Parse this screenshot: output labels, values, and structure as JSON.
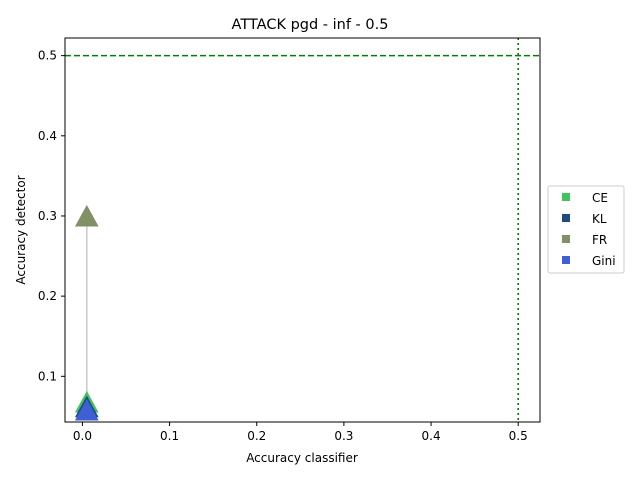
{
  "chart_data": {
    "type": "scatter",
    "title": "ATTACK pgd - inf - 0.5",
    "xlabel": "Accuracy classifier",
    "ylabel": "Accuracy detector",
    "xlim": [
      -0.02,
      0.525
    ],
    "ylim": [
      0.043,
      0.522
    ],
    "xticks": [
      0.0,
      0.1,
      0.2,
      0.3,
      0.4,
      0.5
    ],
    "xtick_labels": [
      "0.0",
      "0.1",
      "0.2",
      "0.3",
      "0.4",
      "0.5"
    ],
    "yticks": [
      0.1,
      0.2,
      0.3,
      0.4,
      0.5
    ],
    "ytick_labels": [
      "0.1",
      "0.2",
      "0.3",
      "0.4",
      "0.5"
    ],
    "grid": false,
    "legend_position": "right, outside plot",
    "reference_lines": [
      {
        "orientation": "horizontal",
        "value": 0.5,
        "style": "dashed",
        "color": "#008000"
      },
      {
        "orientation": "vertical",
        "value": 0.5,
        "style": "dotted",
        "color": "#008000"
      }
    ],
    "connector": {
      "x": 0.005,
      "y_from": 0.058,
      "y_to": 0.3,
      "color": "#cccccc"
    },
    "series": [
      {
        "name": "CE",
        "color": "#3fc35a",
        "x": 0.005,
        "y": 0.068,
        "marker": "triangle"
      },
      {
        "name": "KL",
        "color": "#204a80",
        "x": 0.005,
        "y": 0.062,
        "marker": "triangle"
      },
      {
        "name": "FR",
        "color": "#7f9165",
        "x": 0.005,
        "y": 0.3,
        "marker": "triangle"
      },
      {
        "name": "Gini",
        "color": "#3f5fd5",
        "x": 0.005,
        "y": 0.058,
        "marker": "triangle"
      }
    ]
  }
}
